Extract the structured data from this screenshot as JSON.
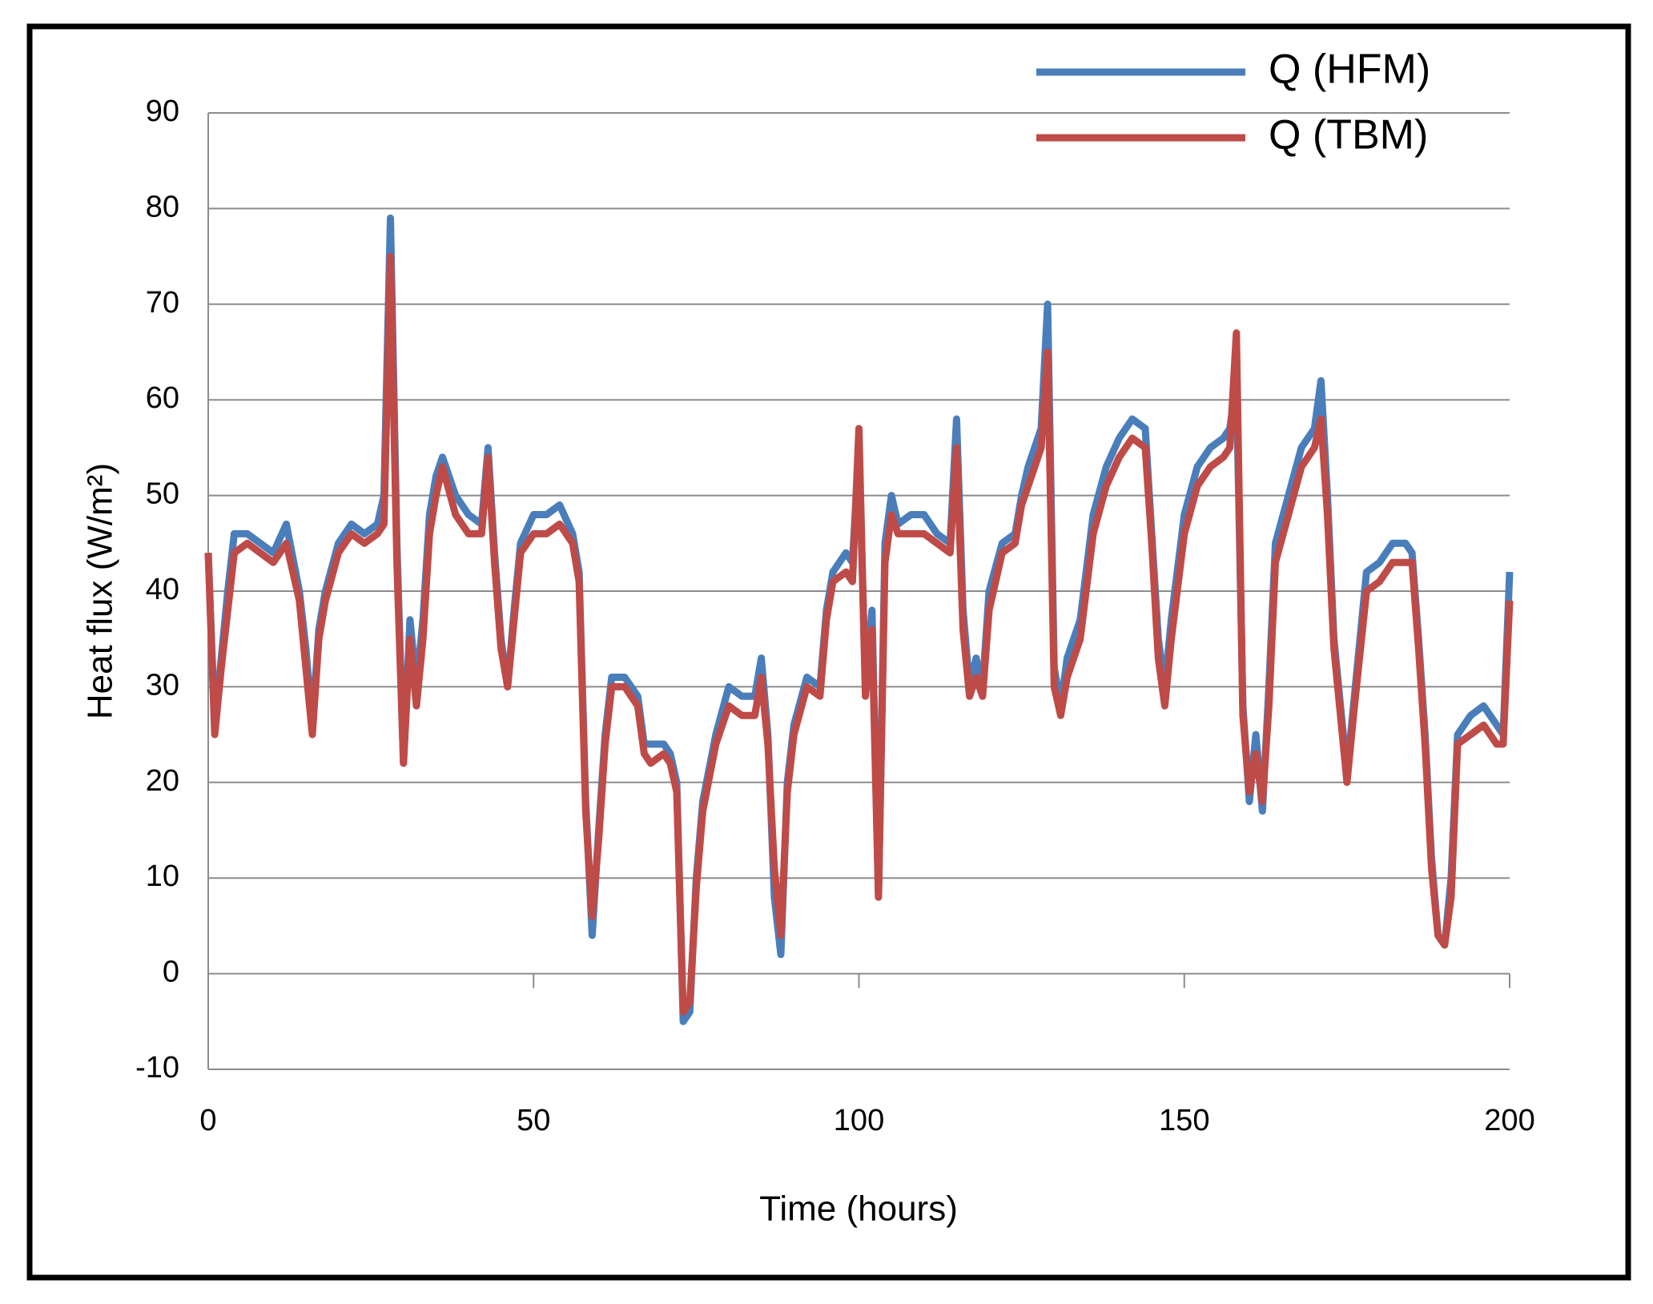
{
  "chart_data": {
    "type": "line",
    "xlabel": "Time (hours)",
    "ylabel": "Heat flux (W/m²)",
    "x": [
      0,
      1,
      2,
      3,
      4,
      6,
      8,
      10,
      12,
      14,
      15,
      16,
      17,
      18,
      20,
      22,
      24,
      26,
      27,
      28,
      29,
      30,
      31,
      32,
      33,
      34,
      35,
      36,
      38,
      40,
      42,
      43,
      44,
      45,
      46,
      47,
      48,
      50,
      52,
      54,
      56,
      57,
      58,
      59,
      60,
      61,
      62,
      64,
      66,
      67,
      68,
      70,
      71,
      72,
      73,
      74,
      75,
      76,
      78,
      80,
      82,
      84,
      85,
      86,
      87,
      88,
      89,
      90,
      92,
      94,
      95,
      96,
      98,
      99,
      100,
      101,
      102,
      103,
      104,
      105,
      106,
      108,
      110,
      112,
      114,
      115,
      116,
      117,
      118,
      119,
      120,
      122,
      124,
      125,
      126,
      128,
      129,
      130,
      131,
      132,
      134,
      136,
      138,
      140,
      142,
      144,
      145,
      146,
      147,
      148,
      150,
      152,
      154,
      156,
      157,
      158,
      159,
      160,
      161,
      162,
      163,
      164,
      166,
      168,
      170,
      171,
      172,
      173,
      174,
      175,
      176,
      178,
      180,
      182,
      184,
      185,
      186,
      187,
      188,
      189,
      190,
      191,
      192,
      194,
      196,
      198,
      199,
      200
    ],
    "series": [
      {
        "name": "Q (HFM)",
        "color": "#4a7ebb",
        "values": [
          44,
          26,
          33,
          40,
          46,
          46,
          45,
          44,
          47,
          40,
          34,
          26,
          36,
          40,
          45,
          47,
          46,
          47,
          50,
          79,
          45,
          22,
          37,
          30,
          37,
          48,
          52,
          54,
          50,
          48,
          47,
          55,
          44,
          35,
          30,
          38,
          45,
          48,
          48,
          49,
          46,
          42,
          18,
          4,
          15,
          25,
          31,
          31,
          29,
          24,
          24,
          24,
          23,
          20,
          -5,
          -4,
          10,
          18,
          25,
          30,
          29,
          29,
          33,
          25,
          8,
          2,
          20,
          26,
          31,
          30,
          38,
          42,
          44,
          43,
          55,
          30,
          38,
          8,
          45,
          50,
          47,
          48,
          48,
          46,
          45,
          58,
          38,
          30,
          33,
          30,
          40,
          45,
          46,
          50,
          53,
          57,
          70,
          32,
          28,
          33,
          37,
          48,
          53,
          56,
          58,
          57,
          46,
          35,
          30,
          37,
          48,
          53,
          55,
          56,
          57,
          62,
          28,
          18,
          25,
          17,
          30,
          45,
          50,
          55,
          57,
          62,
          50,
          35,
          28,
          21,
          28,
          42,
          43,
          45,
          45,
          44,
          35,
          25,
          12,
          4,
          3,
          10,
          25,
          27,
          28,
          26,
          25,
          42
        ]
      },
      {
        "name": "Q (TBM)",
        "color": "#be4b48",
        "values": [
          44,
          25,
          32,
          38,
          44,
          45,
          44,
          43,
          45,
          39,
          32,
          25,
          35,
          39,
          44,
          46,
          45,
          46,
          47,
          75,
          43,
          22,
          35,
          28,
          35,
          46,
          50,
          53,
          48,
          46,
          46,
          54,
          43,
          34,
          30,
          37,
          44,
          46,
          46,
          47,
          45,
          41,
          17,
          6,
          14,
          24,
          30,
          30,
          28,
          23,
          22,
          23,
          22,
          19,
          -4,
          -3,
          9,
          17,
          24,
          28,
          27,
          27,
          31,
          24,
          11,
          4,
          19,
          25,
          30,
          29,
          37,
          41,
          42,
          41,
          57,
          29,
          36,
          8,
          43,
          48,
          46,
          46,
          46,
          45,
          44,
          55,
          36,
          29,
          31,
          29,
          38,
          44,
          45,
          49,
          51,
          55,
          65,
          30,
          27,
          31,
          35,
          46,
          51,
          54,
          56,
          55,
          45,
          33,
          28,
          35,
          46,
          51,
          53,
          54,
          55,
          67,
          27,
          19,
          23,
          18,
          28,
          43,
          48,
          53,
          55,
          58,
          48,
          34,
          27,
          20,
          27,
          40,
          41,
          43,
          43,
          43,
          34,
          24,
          11,
          4,
          3,
          8,
          24,
          25,
          26,
          24,
          24,
          39
        ]
      }
    ],
    "xlim": [
      0,
      200
    ],
    "xticks": [
      0,
      50,
      100,
      150,
      200
    ],
    "ylim": [
      -10,
      90
    ],
    "yticks": [
      -10,
      0,
      10,
      20,
      30,
      40,
      50,
      60,
      70,
      80,
      90
    ],
    "grid": true,
    "legend": "upper right"
  }
}
